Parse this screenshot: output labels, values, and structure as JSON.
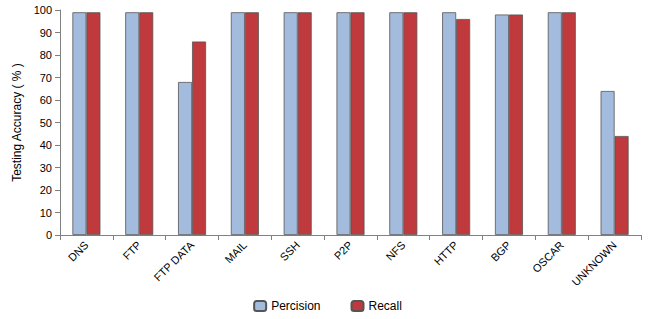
{
  "chart_data": {
    "type": "bar",
    "y_label": "Testing Accuracy ( % )",
    "categories": [
      "DNS",
      "FTP",
      "FTP DATA",
      "MAIL",
      "SSH",
      "P2P",
      "NFS",
      "HTTP",
      "BGP",
      "OSCAR",
      "UNKNOWN"
    ],
    "series": [
      {
        "name": "Percision",
        "color": "#a3bbdd",
        "values": [
          99,
          99,
          68,
          99,
          99,
          99,
          99,
          99,
          98,
          99,
          64
        ]
      },
      {
        "name": "Recall",
        "color": "#c0393c",
        "values": [
          99,
          99,
          86,
          99,
          99,
          99,
          99,
          96,
          98,
          99,
          44
        ]
      }
    ],
    "ylim": [
      0,
      100
    ],
    "yticks": [
      0,
      10,
      20,
      30,
      40,
      50,
      60,
      70,
      80,
      90,
      100
    ],
    "grid": false,
    "legend": "bottom"
  }
}
